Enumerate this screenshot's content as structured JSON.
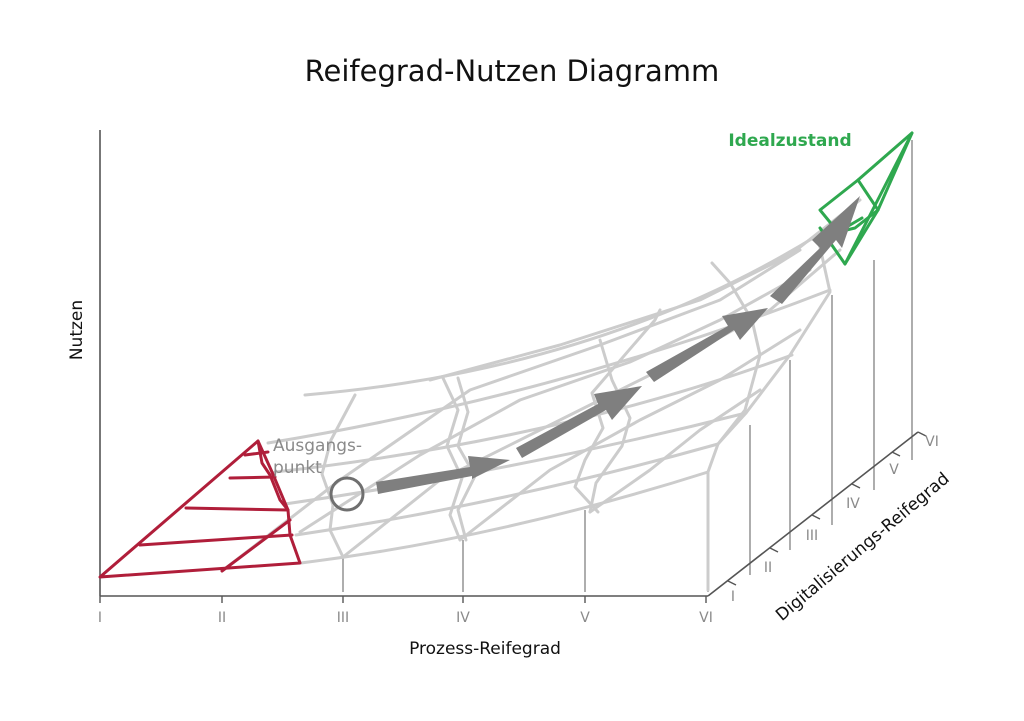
{
  "title": "Reifegrad-Nutzen Diagramm",
  "axes": {
    "y_label": "Nutzen",
    "x_label": "Prozess-Reifegrad",
    "z_label": "Digitalisierungs-Reifegrad",
    "x_ticks": [
      "I",
      "II",
      "III",
      "IV",
      "V",
      "VI"
    ],
    "z_ticks": [
      "I",
      "II",
      "III",
      "IV",
      "V",
      "VI"
    ]
  },
  "annotations": {
    "start_line1": "Ausgangs-",
    "start_line2": "punkt",
    "ideal": "Idealzustand"
  },
  "colors": {
    "grid": "#cccccc",
    "axis": "#555555",
    "start_region": "#b01e3a",
    "ideal_region": "#2fa84f",
    "arrow": "#7f7f7f",
    "start_marker": "#6f6f6f",
    "annotation_text": "#8a8a8a",
    "ideal_text": "#2fa84f"
  }
}
